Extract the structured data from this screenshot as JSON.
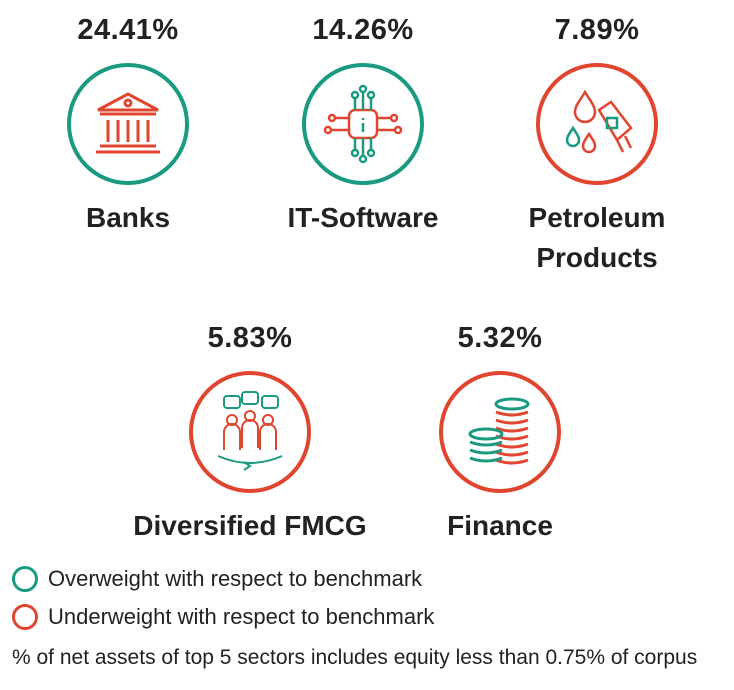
{
  "colors": {
    "overweight": "#1a9a80",
    "underweight": "#e0452f"
  },
  "sectors": [
    {
      "percent": "24.41%",
      "name": "Banks",
      "weight": "overweight",
      "icon": "bank-icon"
    },
    {
      "percent": "14.26%",
      "name": "IT-Software",
      "weight": "overweight",
      "icon": "chip-icon"
    },
    {
      "percent": "7.89%",
      "name_line1": "Petroleum",
      "name_line2": "Products",
      "weight": "underweight",
      "icon": "fuel-nozzle-icon"
    },
    {
      "percent": "5.83%",
      "name": "Diversified FMCG",
      "weight": "underweight",
      "icon": "consumers-icon"
    },
    {
      "percent": "5.32%",
      "name": "Finance",
      "weight": "underweight",
      "icon": "coins-icon"
    }
  ],
  "legend": {
    "overweight": "Overweight with respect to benchmark",
    "underweight": "Underweight with respect to benchmark"
  },
  "footnote": "% of net assets of top 5 sectors includes equity less than 0.75% of corpus"
}
